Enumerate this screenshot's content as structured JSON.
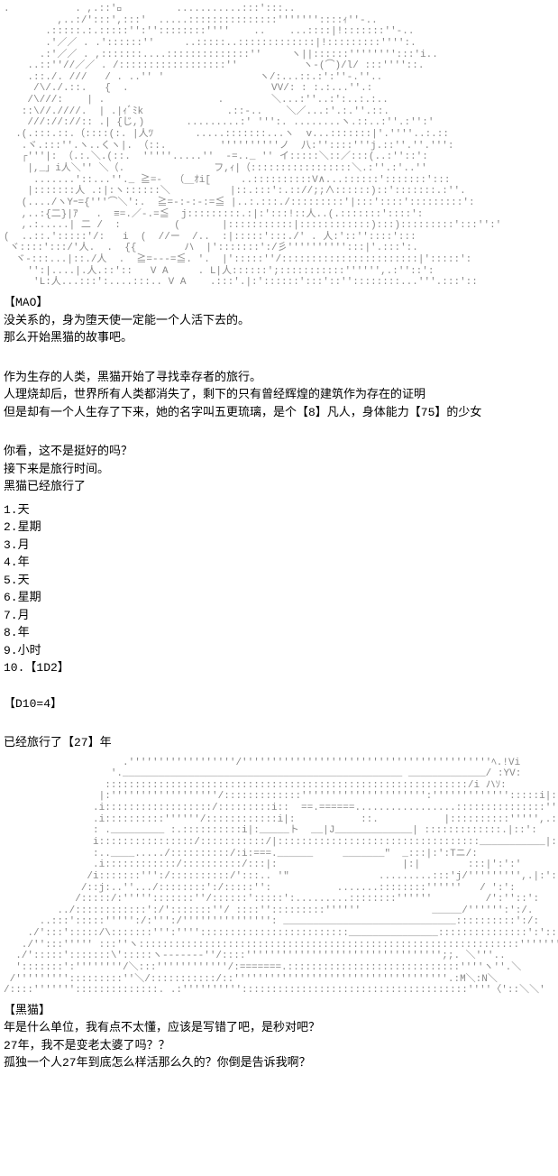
{
  "ascii_art_1": ".           . ,.::'ﾞ         ...........:::':::..\n         ,..:/':::',:::'  .....:::::::::::::::'''''''::::ｨ''-..\n       .:::::.:.:::::'':''::::::::''''    ..    ...::::|!:::::::''-..\n       .'／／ . .'::::::''     ..:::::..:::::::::::::|!:::::::::'''':.\n      .:'／／ . ,:::::::....::::::::::::::''     ヽ||::::::'''''''':::'i..\n    ..::''//／／ . /::::::::::::::::::''           ヽ-(⌒)/l/ :::''''::.\n    .::./. ///   / . ..'' '                ヽ/:...::.:':''-.''..\n     /\\/./.::.   {  .                        VV/: : :.:...''.:\n    /\\///:    | .                   .        ＼...:''..:':..:.:..\n   ::\\//.////.  | .|ｨﾞﾐk              .::-..    ＼／...:'.:.''.::.\n    ///://://:: .| {じ,)       .........:' ''':. ........ヽ.::..:''.:'':'\n  .(.:::.::.（::::(:. |人ﾂ       .....:::::::...ヽ  v...:::::::|'.''''..:.::\n   .ヾ.:::''.ヽ..くヽ|. （::.         ''''''''''ノ  八:''::::'''j.::''.''.''':\n   ┌'''|: （.:.＼.(::.  '''''.....''  -=.._ '' イ:::::＼::／:::(..:''::':\n    |,_」i人＼'' ＼（.               フ,ｨ|（:::::::::::::::::＼.:''.:'..''\n     .......'::...''._ ≧=-  （＿ｵi[     ..::::::::::V∧...::::::':::::::':::\n    |:::::::人 .:|:ヽ::::::＼          |::.:::':.:://;;∧::::::)::':::::::.:''.\n   (..../ヽYｰ={'''⌒＼':.  ≧=-:-:-:=≦ |..:.:::./:::::::::'|:::'::::':::::::::':\n   ,..:{二}|ｱ   .  ≡=.／-.=≦  j:::::::::.:|:':::!::人..(.:::::::'::::':\n   ,.:.....| 二 /  :         (       |:::::::::::|::::::::::::):::):::::::::':::'':'\n(  ..::.':::::'/:   i  (  //ー  /..  :|:::::':::./' . 人:'::''::::':::\n ヾ::::':::/'人.  .  {{        ハ  |':::::::':/彡'''''''''':::|'.:::':.\n  ヾ-:::...|::./人  .  ≧=---=≦. '.  |':::::''/:::::::::::::::::::::::|':::::':\n    '':|....|.人.::'::   V A     . L|人::::::';:::::::::::'''''',.:''::':\n     'L:人...:::':....:::.. V A    .:::'.|:'::::::':::'::''::::::::...'''.:::'::",
  "dialogue_1": {
    "speaker": "【MAO】",
    "line1": "没关系的，身为堕天使一定能一个人活下去的。",
    "line2": "那么开始黑猫的故事吧。"
  },
  "narration_1": {
    "line1": "作为生存的人类，黑猫开始了寻找幸存者的旅行。",
    "line2": "人理烧却后，世界所有人类都消失了，剩下的只有曾经辉煌的建筑作为存在的证明",
    "line3": "但是却有一个人生存了下来，她的名字叫五更琉璃，是个【8】凡人，身体能力【75】的少女"
  },
  "narration_2": {
    "line1": "你看，这不是挺好的吗？",
    "line2": "接下来是旅行时间。",
    "line3": "黑猫已经旅行了"
  },
  "list_items": [
    "1.天",
    "2.星期",
    "3.月",
    "4.年",
    "5.天",
    "6.星期",
    "7.月",
    "8.年",
    "9.小时",
    "10.【1D2】"
  ],
  "dice_result": "【D10=4】",
  "travel_result": "已经旅行了【27】年",
  "ascii_art_2": "                    .''''''''''''''''''/''''''''''''''''''''''''''''''''''''''''''ﾍ.!Vi\n                  '._______________________________________________ _____________/ :YV:\n                 :::::::::::::::::::::::::::::::::::::::::::::::::::::::::::::/i ハｿ:\n                |:''''''''''''''''''/:::::::::::::''''''''''''''''''''':''''''''''''':::::i|:: :\n               .i::::::::::::::::::/:::::::::i::  ==.======.................:::::::::::::::''''''''Y\n               .i::::::::::''''''/::::::::::::i|:           ::.           |::::::::::''''',.:::|':\n               : ._________ :.::::::::::i|:_____ト  __|J_____________| :::::::::::::.|::':\n               i::::::::::::::::/:::::::::::/|::::::::::::::::::::::::::::::::::___________|:..::::::''''''{ :\n               :..____...../::::::::::/:i:===.______     _______\"  _:::|:':Tニ/:\n               .i::::::::::::/::::::::::/:::|:                     |:|        :::|':':'\n              /i:::::::''':/::::::::::/':::.. '\"               .........:::'j/''''''''',.|:':\n             /::j:..''.../::::::::':/:::::'':           .......::::::::''''''   / ':':\n            /:::::/:''''':::::::''/::::::':::::':.........::::::::''''''         /':''::':\n         ../::::::::::::':/':::::::''/ ::::'':::::::::''''''            _____/'''''':':/.\n      ..:::':::::''''':/:''':/''''''''''''''': _____________________________::::::::::':/:\n    ./':::':::::/\\:::::::''':'''':::::::::::::::::::::::::_______________:::::::::::::::':':::::':/\n   ./'':::''''' :::''ヽ::::::::::::::::::::::::::::::::::::::::::::::::::::::::::::::::''''''''Y.''''/\n  ./':::::':::::::\\':::::ヽ-------''/::::''''''''''''''''''''''''''''''''';;. ＼'''..\n  ':::::::':''''''''/＼:::''''''''''''/:=======.:::::::::::::::::::::::::::::''''ヽ''.＼\n /''''''''':::::::::''＼/:::::::::::/::''''''''''''''''''''''''''''''''''''.:M＼:N＼\n/::::'''''''::::::::::::::. .:''''''''''::::::::::::::::::::::::::::::::::::::''''〈'::＼＼'",
  "dialogue_2": {
    "speaker": "【黑猫】",
    "line1": "年是什么单位，我有点不太懂，应该是写错了吧，是秒对吧？",
    "line2": "27年，我不是变老太婆了吗？？",
    "line3": "孤独一个人27年到底怎么样活那么久的？你倒是告诉我啊？"
  }
}
